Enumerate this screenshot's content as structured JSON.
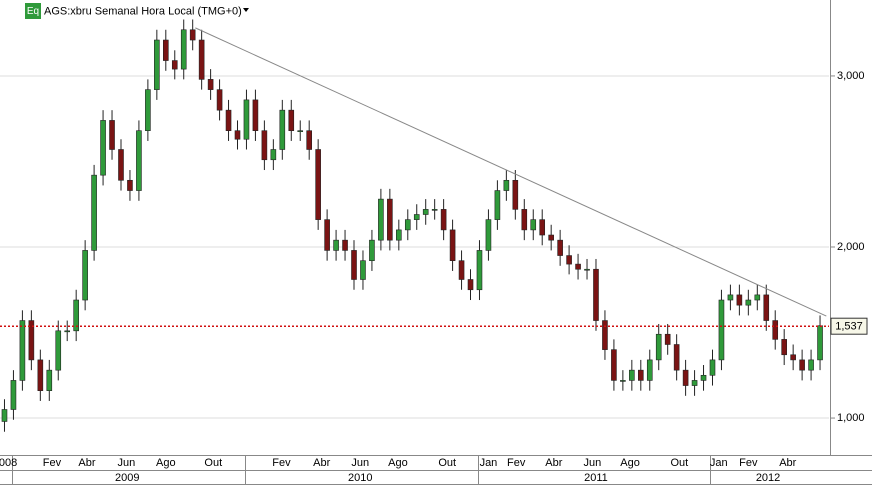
{
  "chart_data": {
    "type": "candlestick",
    "title": "AGS:xbru Semanal Hora Local (TMG+0)",
    "badge": "Eq",
    "open": [
      980,
      1050,
      1220,
      1570,
      1340,
      1160,
      1280,
      1510,
      1510,
      1690,
      1980,
      2420,
      2740,
      2570,
      2390,
      2330,
      2680,
      2920,
      3210,
      3090,
      3040,
      3270,
      3210,
      2980,
      2920,
      2800,
      2680,
      2630,
      2860,
      2680,
      2510,
      2570,
      2800,
      2680,
      2680,
      2570,
      2160,
      1980,
      2040,
      1980,
      1810,
      1920,
      2040,
      2280,
      2040,
      2100,
      2160,
      2190,
      2220,
      2220,
      2100,
      1920,
      1810,
      1750,
      1980,
      2160,
      2330,
      2390,
      2220,
      2100,
      2160,
      2070,
      2040,
      1950,
      1900,
      1870,
      1870,
      1570,
      1400,
      1220,
      1220,
      1280,
      1220,
      1340,
      1490,
      1430,
      1280,
      1190,
      1220,
      1250,
      1340,
      1690,
      1720,
      1660,
      1690,
      1720,
      1570,
      1460,
      1370,
      1340,
      1280,
      1340
    ],
    "high": [
      1110,
      1280,
      1630,
      1630,
      1400,
      1340,
      1570,
      1570,
      1750,
      2040,
      2480,
      2800,
      2800,
      2630,
      2450,
      2740,
      2980,
      3270,
      3270,
      3150,
      3330,
      3330,
      3270,
      3040,
      2980,
      2860,
      2740,
      2920,
      2920,
      2740,
      2630,
      2860,
      2860,
      2740,
      2740,
      2630,
      2220,
      2100,
      2100,
      2040,
      1980,
      2100,
      2340,
      2340,
      2160,
      2220,
      2250,
      2280,
      2280,
      2280,
      2160,
      1980,
      1870,
      2040,
      2220,
      2390,
      2450,
      2450,
      2280,
      2220,
      2220,
      2130,
      2100,
      2010,
      1960,
      1930,
      1930,
      1630,
      1460,
      1280,
      1340,
      1340,
      1400,
      1550,
      1550,
      1490,
      1340,
      1280,
      1310,
      1400,
      1750,
      1780,
      1780,
      1750,
      1780,
      1780,
      1630,
      1520,
      1430,
      1400,
      1400,
      1600
    ],
    "low": [
      920,
      990,
      1160,
      1280,
      1100,
      1100,
      1220,
      1450,
      1450,
      1630,
      1920,
      2360,
      2510,
      2330,
      2270,
      2270,
      2620,
      2860,
      3030,
      2980,
      2980,
      3150,
      2920,
      2860,
      2740,
      2620,
      2570,
      2570,
      2620,
      2450,
      2450,
      2510,
      2620,
      2620,
      2510,
      2100,
      1920,
      1920,
      1920,
      1750,
      1750,
      1860,
      1980,
      1980,
      1980,
      2040,
      2100,
      2130,
      2160,
      2040,
      1860,
      1750,
      1690,
      1690,
      1920,
      2100,
      2270,
      2160,
      2040,
      2040,
      2010,
      1980,
      1890,
      1840,
      1810,
      1810,
      1510,
      1340,
      1160,
      1160,
      1160,
      1160,
      1160,
      1280,
      1370,
      1220,
      1130,
      1130,
      1160,
      1190,
      1280,
      1630,
      1600,
      1600,
      1630,
      1510,
      1400,
      1310,
      1280,
      1220,
      1220,
      1280
    ],
    "close": [
      1050,
      1220,
      1570,
      1340,
      1160,
      1280,
      1510,
      1510,
      1690,
      1980,
      2420,
      2740,
      2570,
      2390,
      2330,
      2680,
      2920,
      3210,
      3090,
      3040,
      3270,
      3210,
      2980,
      2920,
      2800,
      2680,
      2630,
      2860,
      2680,
      2510,
      2570,
      2800,
      2680,
      2680,
      2570,
      2160,
      1980,
      2040,
      1980,
      1810,
      1920,
      2040,
      2280,
      2040,
      2100,
      2160,
      2190,
      2220,
      2220,
      2100,
      1920,
      1810,
      1750,
      1980,
      2160,
      2330,
      2390,
      2220,
      2100,
      2160,
      2070,
      2040,
      1950,
      1900,
      1870,
      1870,
      1570,
      1400,
      1220,
      1220,
      1280,
      1220,
      1340,
      1490,
      1430,
      1280,
      1190,
      1220,
      1250,
      1340,
      1690,
      1720,
      1660,
      1690,
      1720,
      1570,
      1460,
      1370,
      1340,
      1280,
      1340,
      1540
    ],
    "up_color": "#2f9a3a",
    "down_color": "#7a1414",
    "ylim": [
      784,
      3444
    ],
    "yticks": [
      {
        "value": 1000,
        "label": "1,000"
      },
      {
        "value": 2000,
        "label": "2,000"
      },
      {
        "value": 3000,
        "label": "3,000"
      }
    ],
    "grid": true,
    "xlim": [
      -0.5,
      92
    ],
    "xticks": [
      {
        "value": 0.4,
        "label": "008"
      },
      {
        "value": 5.3,
        "label": "Fev"
      },
      {
        "value": 9.2,
        "label": "Abr"
      },
      {
        "value": 13.6,
        "label": "Jun"
      },
      {
        "value": 18.0,
        "label": "Ago"
      },
      {
        "value": 23.3,
        "label": "Out"
      },
      {
        "value": 30.9,
        "label": "Fev"
      },
      {
        "value": 35.4,
        "label": "Abr"
      },
      {
        "value": 39.7,
        "label": "Jun"
      },
      {
        "value": 43.9,
        "label": "Ago"
      },
      {
        "value": 49.4,
        "label": "Out"
      },
      {
        "value": 54.0,
        "label": "Jan"
      },
      {
        "value": 57.1,
        "label": "Fev"
      },
      {
        "value": 61.3,
        "label": "Abr"
      },
      {
        "value": 65.6,
        "label": "Jun"
      },
      {
        "value": 69.8,
        "label": "Ago"
      },
      {
        "value": 75.3,
        "label": "Out"
      },
      {
        "value": 79.7,
        "label": "Jan"
      },
      {
        "value": 83.0,
        "label": "Fev"
      },
      {
        "value": 87.4,
        "label": "Abr"
      }
    ],
    "year_ticks": [
      {
        "value": 13.7,
        "label": "2009"
      },
      {
        "value": 39.7,
        "label": "2010"
      },
      {
        "value": 66.0,
        "label": "2011"
      },
      {
        "value": 85.2,
        "label": "2012"
      }
    ],
    "trendline": {
      "x": [
        21.3,
        91.7
      ],
      "y": [
        3281,
        1596
      ],
      "color": "#888888"
    },
    "last_price": 1537,
    "last_price_label": "1,537",
    "last_price_color": "#d01010"
  }
}
